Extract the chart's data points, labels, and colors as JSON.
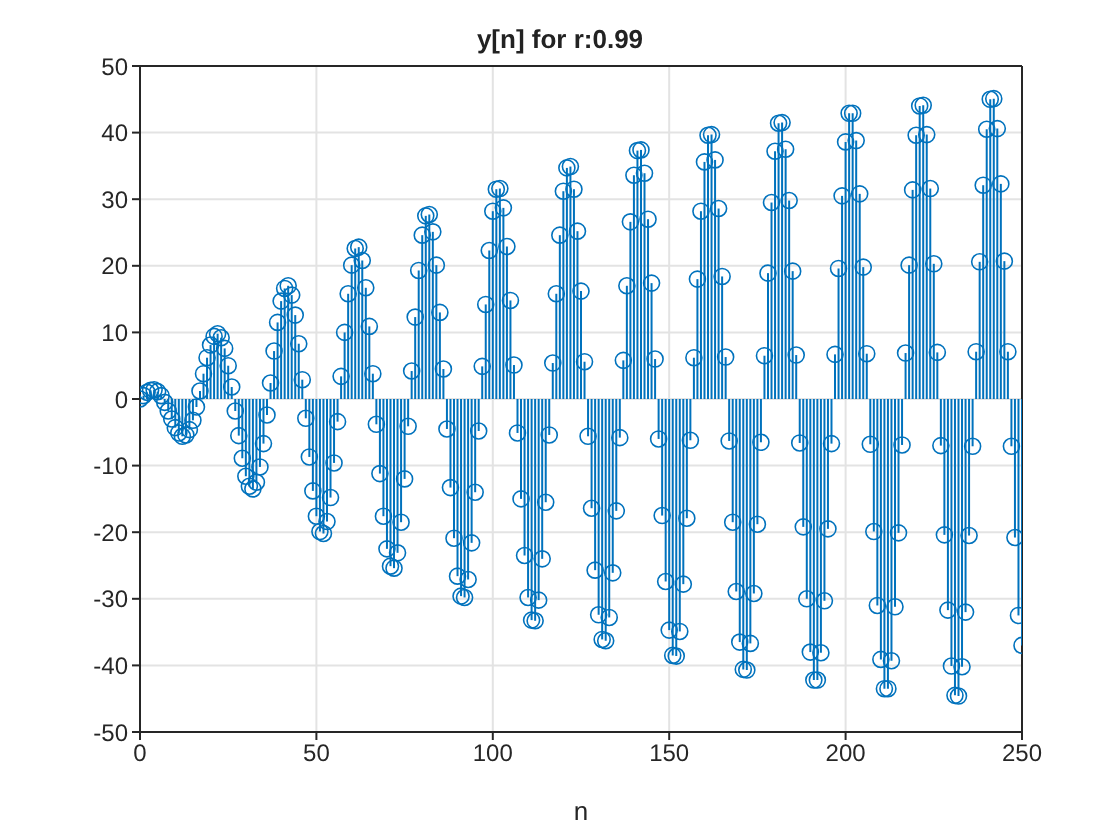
{
  "chart_data": {
    "type": "lollipop",
    "title": "y[n] for r:0.99",
    "xlabel": "n",
    "color": "#0072bd",
    "marker": "circle",
    "grid": true,
    "x": [
      0,
      1,
      2,
      3,
      4,
      5,
      6,
      7,
      8,
      9,
      10,
      11,
      12,
      13,
      14,
      15,
      16,
      17,
      18,
      19,
      20,
      21,
      22,
      23,
      24,
      25,
      26,
      27,
      28,
      29,
      30,
      31,
      32,
      33,
      34,
      35,
      36,
      37,
      38,
      39,
      40,
      41,
      42,
      43,
      44,
      45,
      46,
      47,
      48,
      49,
      50,
      51,
      52,
      53,
      54,
      55,
      56,
      57,
      58,
      59,
      60,
      61,
      62,
      63,
      64,
      65,
      66,
      67,
      68,
      69,
      70,
      71,
      72,
      73,
      74,
      75,
      76,
      77,
      78,
      79,
      80,
      81,
      82,
      83,
      84,
      85,
      86,
      87,
      88,
      89,
      90,
      91,
      92,
      93,
      94,
      95,
      96,
      97,
      98,
      99,
      100,
      101,
      102,
      103,
      104,
      105,
      106,
      107,
      108,
      109,
      110,
      111,
      112,
      113,
      114,
      115,
      116,
      117,
      118,
      119,
      120,
      121,
      122,
      123,
      124,
      125,
      126,
      127,
      128,
      129,
      130,
      131,
      132,
      133,
      134,
      135,
      136,
      137,
      138,
      139,
      140,
      141,
      142,
      143,
      144,
      145,
      146,
      147,
      148,
      149,
      150,
      151,
      152,
      153,
      154,
      155,
      156,
      157,
      158,
      159,
      160,
      161,
      162,
      163,
      164,
      165,
      166,
      167,
      168,
      169,
      170,
      171,
      172,
      173,
      174,
      175,
      176,
      177,
      178,
      179,
      180,
      181,
      182,
      183,
      184,
      185,
      186,
      187,
      188,
      189,
      190,
      191,
      192,
      193,
      194,
      195,
      196,
      197,
      198,
      199,
      200,
      201,
      202,
      203,
      204,
      205,
      206,
      207,
      208,
      209,
      210,
      211,
      212,
      213,
      214,
      215,
      216,
      217,
      218,
      219,
      220,
      221,
      222,
      223,
      224,
      225,
      226,
      227,
      228,
      229,
      230,
      231,
      232,
      233,
      234,
      235,
      236,
      237,
      238,
      239,
      240,
      241,
      242,
      243,
      244,
      245,
      246,
      247,
      248,
      249,
      250
    ],
    "values": [
      0,
      0.5,
      1.0,
      1.3,
      1.4,
      1.1,
      0.5,
      -0.5,
      -1.8,
      -3.0,
      -4.3,
      -5.1,
      -5.6,
      -5.4,
      -4.6,
      -3.2,
      -1.2,
      1.2,
      3.8,
      6.2,
      8.1,
      9.4,
      9.8,
      9.2,
      7.6,
      5.0,
      1.8,
      -1.8,
      -5.5,
      -8.9,
      -11.6,
      -13.1,
      -13.5,
      -12.5,
      -10.2,
      -6.7,
      -2.4,
      2.4,
      7.2,
      11.5,
      14.7,
      16.6,
      17.0,
      15.6,
      12.6,
      8.3,
      2.9,
      -2.9,
      -8.7,
      -13.8,
      -17.6,
      -19.9,
      -20.2,
      -18.4,
      -14.8,
      -9.6,
      -3.4,
      3.4,
      10.0,
      15.8,
      20.1,
      22.6,
      22.8,
      20.8,
      16.7,
      10.9,
      3.8,
      -3.8,
      -11.2,
      -17.6,
      -22.5,
      -25.1,
      -25.4,
      -23.1,
      -18.5,
      -12.0,
      -4.1,
      4.2,
      12.3,
      19.3,
      24.6,
      27.5,
      27.7,
      25.1,
      20.1,
      13.0,
      4.5,
      -4.5,
      -13.3,
      -20.9,
      -26.6,
      -29.6,
      -29.8,
      -27.1,
      -21.6,
      -14.0,
      -4.8,
      4.9,
      14.2,
      22.3,
      28.2,
      31.5,
      31.6,
      28.7,
      22.9,
      14.8,
      5.1,
      -5.1,
      -15.0,
      -23.5,
      -29.8,
      -33.2,
      -33.3,
      -30.2,
      -24.0,
      -15.5,
      -5.4,
      5.4,
      15.8,
      24.6,
      31.2,
      34.7,
      34.9,
      31.5,
      25.2,
      16.2,
      5.6,
      -5.6,
      -16.4,
      -25.7,
      -32.4,
      -36.1,
      -36.3,
      -32.8,
      -26.1,
      -16.8,
      -5.8,
      5.8,
      17.0,
      26.6,
      33.6,
      37.3,
      37.4,
      33.9,
      27.0,
      17.4,
      6.0,
      -6.0,
      -17.5,
      -27.4,
      -34.7,
      -38.5,
      -38.6,
      -34.9,
      -27.8,
      -17.9,
      -6.2,
      6.2,
      18.0,
      28.2,
      35.6,
      39.6,
      39.7,
      35.9,
      28.6,
      18.4,
      6.3,
      -6.3,
      -18.5,
      -28.9,
      -36.5,
      -40.6,
      -40.7,
      -36.7,
      -29.2,
      -18.8,
      -6.5,
      6.5,
      18.9,
      29.5,
      37.2,
      41.4,
      41.5,
      37.5,
      29.8,
      19.2,
      6.6,
      -6.6,
      -19.2,
      -30.0,
      -38.0,
      -42.2,
      -42.2,
      -38.1,
      -30.3,
      -19.5,
      -6.7,
      6.7,
      19.6,
      30.5,
      38.6,
      42.9,
      42.9,
      38.8,
      30.8,
      19.8,
      6.8,
      -6.8,
      -19.9,
      -31.0,
      -39.1,
      -43.5,
      -43.5,
      -39.3,
      -31.2,
      -20.1,
      -6.9,
      6.9,
      20.1,
      31.4,
      39.6,
      44.0,
      44.1,
      39.7,
      31.6,
      20.3,
      7.0,
      -7.0,
      -20.4,
      -31.7,
      -40.1,
      -44.5,
      -44.6,
      -40.2,
      -32.0,
      -20.5,
      -7.1,
      7.1,
      20.6,
      32.1,
      40.5,
      45.0,
      45.1,
      40.6,
      32.3,
      20.7,
      7.1,
      -7.1,
      -20.8,
      -32.5,
      -37.0
    ],
    "xlim": [
      0,
      250
    ],
    "xticks": [
      0,
      50,
      100,
      150,
      200,
      250
    ],
    "ylim": [
      -50,
      50
    ],
    "yticks": [
      -50,
      -40,
      -30,
      -20,
      -10,
      0,
      10,
      20,
      30,
      40,
      50
    ]
  }
}
